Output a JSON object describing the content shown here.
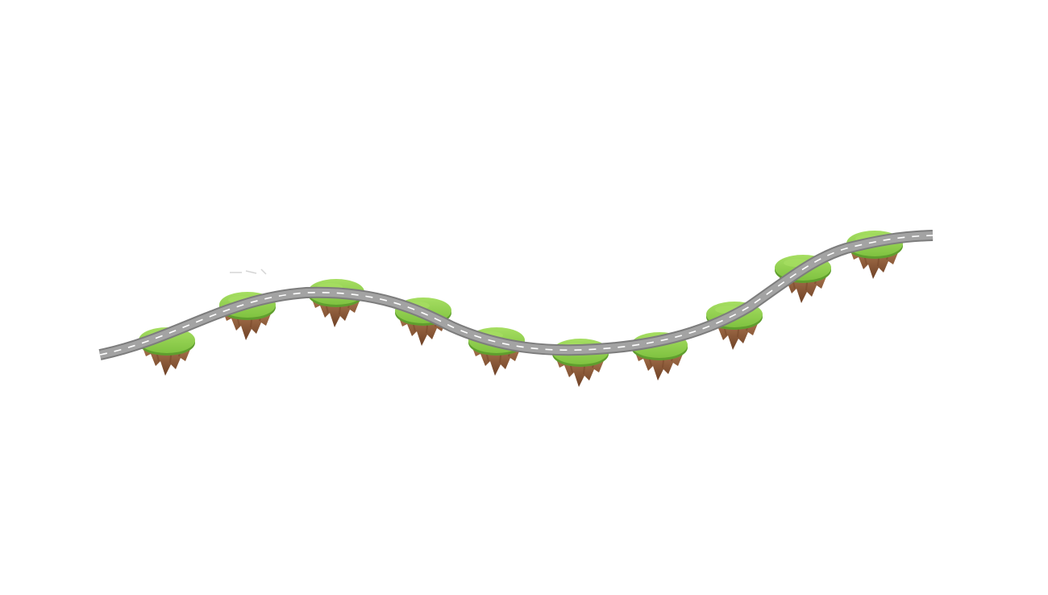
{
  "scene": {
    "name": "floating-island-road-path",
    "island_count": 10
  },
  "colors": {
    "background": "#ffffff",
    "grass_top": "#8ccf4a",
    "grass_light": "#a6de62",
    "grass_edge": "#5f9e2e",
    "dirt_light": "#b07a52",
    "dirt_dark": "#7a4a2c",
    "road_asphalt": "#9a9a9a",
    "road_edge": "#7d7d7d",
    "road_dash": "#ffffff"
  }
}
